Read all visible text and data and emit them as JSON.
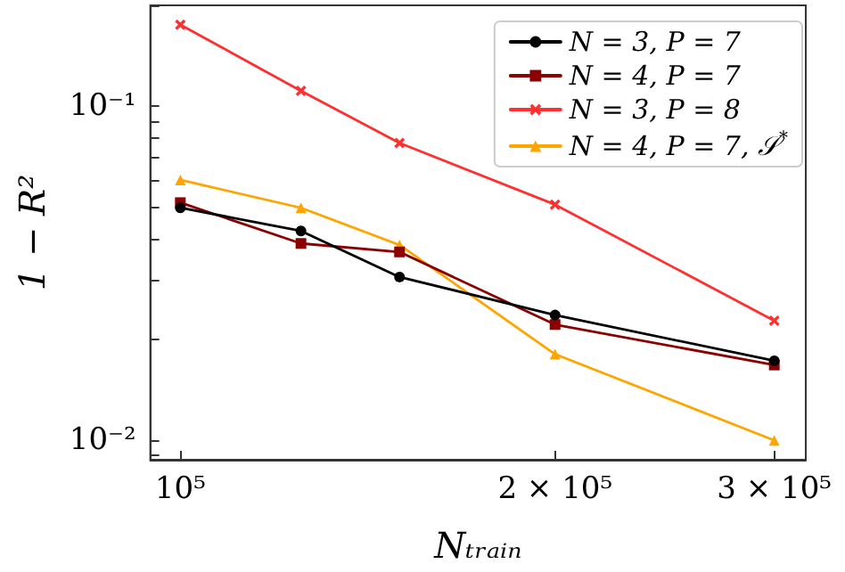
{
  "chart_data": {
    "type": "line",
    "xlabel": "Nₜᵣₐᵢₙ",
    "ylabel": "1 − R²",
    "x": [
      100000,
      125000,
      150000,
      200000,
      300000
    ],
    "series": [
      {
        "name": "N = 3, P = 7",
        "color": "#000000",
        "marker": "circle",
        "values": [
          0.0496,
          0.0423,
          0.0308,
          0.0237,
          0.0173
        ]
      },
      {
        "name": "N = 4, P = 7",
        "color": "#8b0000",
        "marker": "square",
        "values": [
          0.0514,
          0.0388,
          0.0366,
          0.0222,
          0.0168
        ]
      },
      {
        "name": "N = 3, P = 8",
        "color": "#ff3030",
        "marker": "cross",
        "values": [
          0.175,
          0.111,
          0.0775,
          0.0507,
          0.0228
        ]
      },
      {
        "name": "N = 4, P = 7, 𝒮$^{*}$",
        "color": "#ffa500",
        "marker": "triangle",
        "values": [
          0.0601,
          0.0496,
          0.0384,
          0.0181,
          0.01
        ]
      }
    ],
    "log": "xy",
    "xlim": [
      94600,
      318000
    ],
    "ylim": [
      0.00875,
      0.2
    ],
    "xticks": [
      {
        "value": 100000,
        "label": "10⁵"
      },
      {
        "value": 200000,
        "label": "2 × 10⁵"
      },
      {
        "value": 300000,
        "label": "3 × 10⁵"
      }
    ],
    "yticks": [
      {
        "value": 0.009,
        "label": null
      },
      {
        "value": 0.01,
        "label": "10⁻²"
      },
      {
        "value": 0.02,
        "label": null
      },
      {
        "value": 0.03,
        "label": null
      },
      {
        "value": 0.04,
        "label": null
      },
      {
        "value": 0.05,
        "label": null
      },
      {
        "value": 0.06,
        "label": null
      },
      {
        "value": 0.07,
        "label": null
      },
      {
        "value": 0.08,
        "label": null
      },
      {
        "value": 0.09,
        "label": null
      },
      {
        "value": 0.1,
        "label": "10⁻¹"
      },
      {
        "value": 0.2,
        "label": null
      }
    ],
    "grid": false,
    "legend": "top right",
    "line_style": "solid"
  }
}
